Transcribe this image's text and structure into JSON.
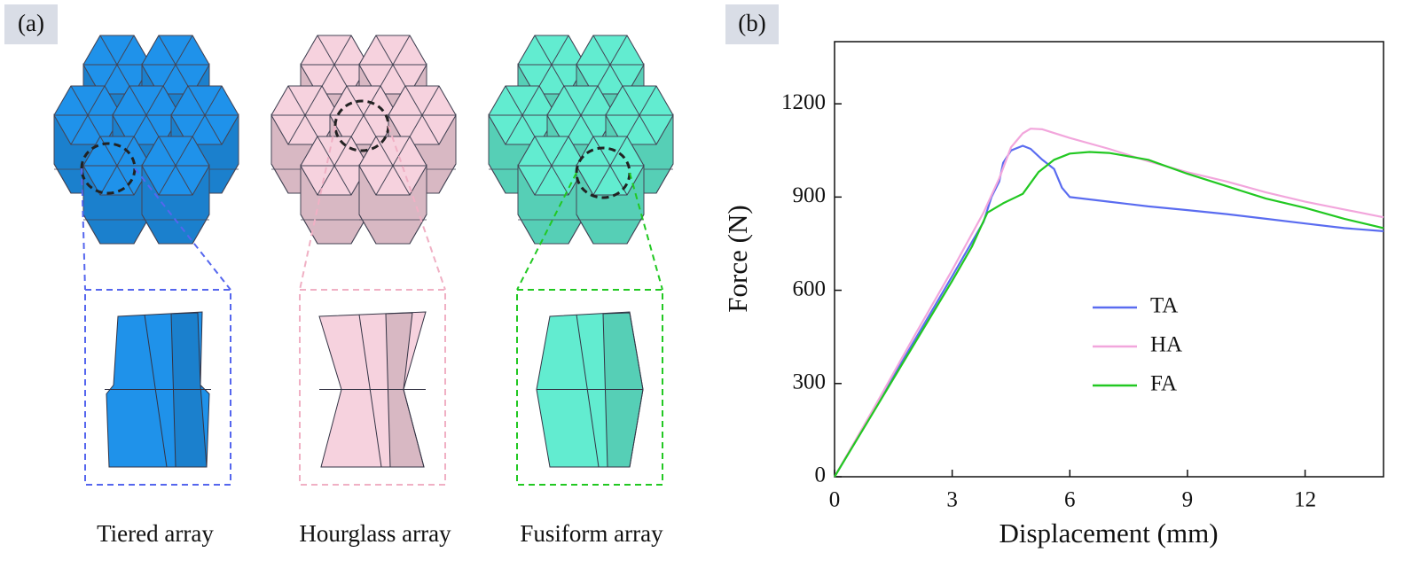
{
  "panel_a": {
    "label": "(a)",
    "captions": [
      "Tiered array",
      "Hourglass array",
      "Fusiform array"
    ]
  },
  "chart_data": {
    "type": "line",
    "panel_label": "(b)",
    "x_label": "Displacement (mm)",
    "y_label": "Force (N)",
    "xlim": [
      0,
      14
    ],
    "ylim": [
      0,
      1400
    ],
    "xticks": [
      0,
      3,
      6,
      9,
      12
    ],
    "yticks": [
      0,
      300,
      600,
      900,
      1200
    ],
    "series": [
      {
        "name": "TA",
        "color": "#5a6cf0",
        "x": [
          0,
          1,
          2,
          3,
          3.8,
          4.0,
          4.2,
          4.3,
          4.5,
          4.8,
          5.0,
          5.3,
          5.6,
          5.8,
          6.0,
          7,
          8,
          9,
          10,
          11,
          12,
          13,
          14
        ],
        "values": [
          0,
          215,
          430,
          645,
          820,
          900,
          950,
          1010,
          1050,
          1065,
          1055,
          1020,
          990,
          930,
          900,
          885,
          870,
          858,
          845,
          830,
          815,
          800,
          790
        ]
      },
      {
        "name": "HA",
        "color": "#f2a6dc",
        "x": [
          0,
          1,
          2,
          3,
          3.8,
          4.2,
          4.5,
          4.8,
          5.0,
          5.3,
          6,
          7,
          8,
          9,
          10,
          11,
          12,
          13,
          14
        ],
        "values": [
          0,
          220,
          445,
          665,
          850,
          960,
          1060,
          1105,
          1120,
          1118,
          1090,
          1055,
          1015,
          980,
          950,
          915,
          885,
          860,
          835
        ]
      },
      {
        "name": "FA",
        "color": "#22c822",
        "x": [
          0,
          1,
          2,
          3,
          3.5,
          3.9,
          4.3,
          4.8,
          5.2,
          5.6,
          6,
          6.5,
          7,
          8,
          9,
          10,
          11,
          12,
          13,
          14
        ],
        "values": [
          0,
          210,
          420,
          630,
          740,
          850,
          880,
          910,
          980,
          1020,
          1040,
          1045,
          1042,
          1020,
          975,
          935,
          895,
          865,
          830,
          800
        ]
      }
    ]
  }
}
